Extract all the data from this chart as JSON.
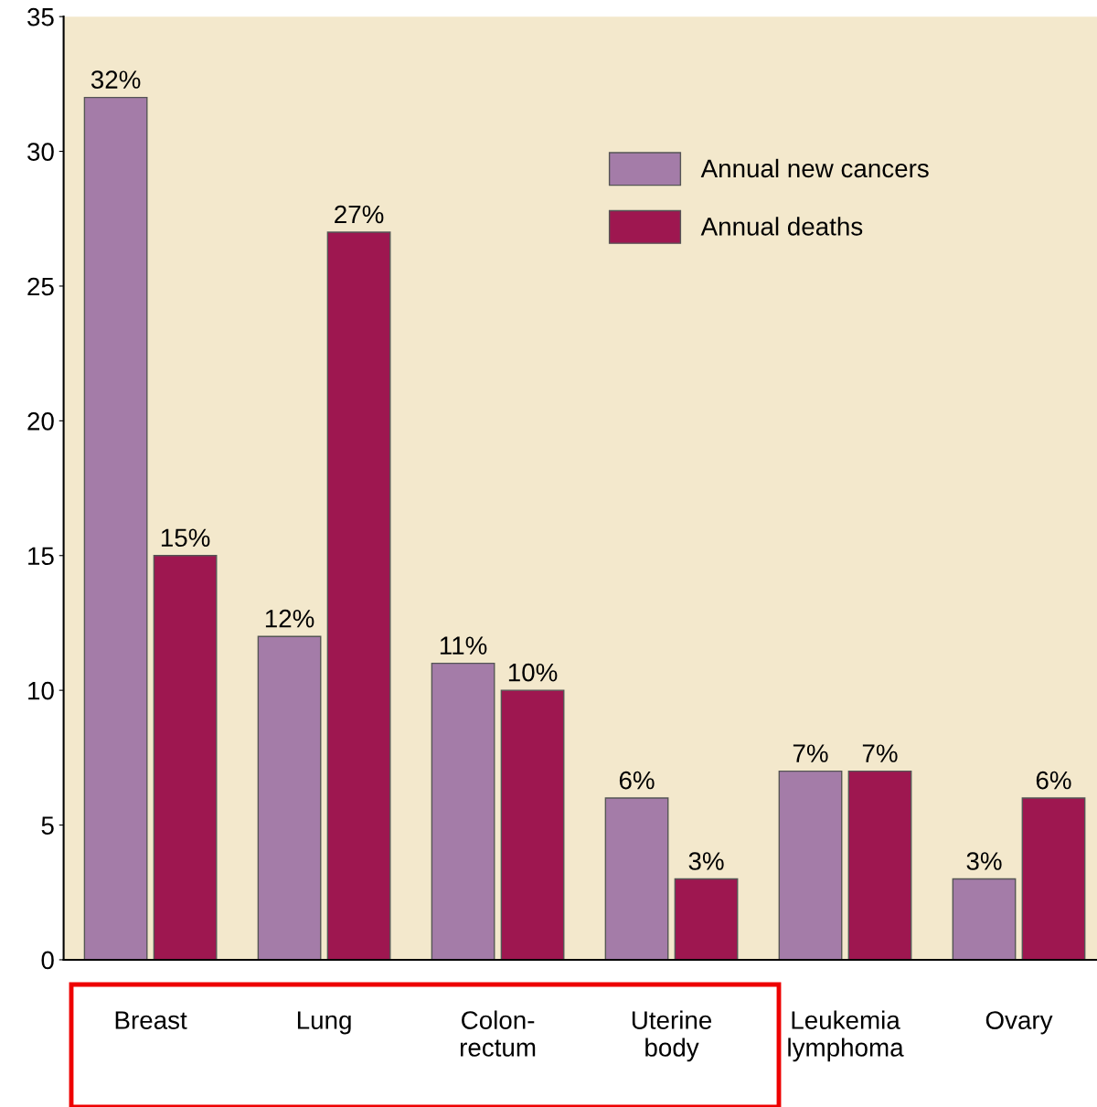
{
  "chart_data": {
    "type": "bar",
    "categories": [
      "Breast",
      "Lung",
      "Colon-\nrectum",
      "Uterine\nbody",
      "Leukemia\nlymphoma",
      "Ovary"
    ],
    "series": [
      {
        "name": "Annual new cancers",
        "color": "#a47ca8",
        "values": [
          32,
          12,
          11,
          6,
          7,
          3
        ],
        "value_labels": [
          "32%",
          "12%",
          "11%",
          "6%",
          "7%",
          "3%"
        ]
      },
      {
        "name": "Annual deaths",
        "color": "#9e1750",
        "values": [
          15,
          27,
          10,
          3,
          7,
          6
        ],
        "value_labels": [
          "15%",
          "27%",
          "10%",
          "3%",
          "7%",
          "6%"
        ]
      }
    ],
    "ylim": [
      0,
      35
    ],
    "yticks": [
      0,
      5,
      10,
      15,
      20,
      25,
      30,
      35
    ],
    "grid": false,
    "legend": "top right"
  }
}
